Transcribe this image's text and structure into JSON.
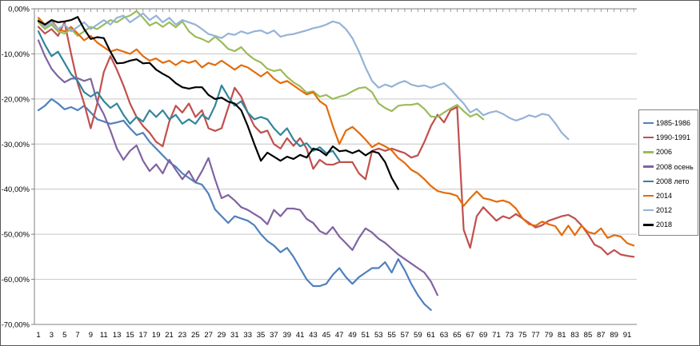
{
  "chart_data": {
    "type": "line",
    "x_axis": {
      "tick_labels": [
        "1",
        "3",
        "5",
        "7",
        "9",
        "11",
        "13",
        "15",
        "17",
        "19",
        "21",
        "23",
        "25",
        "27",
        "29",
        "31",
        "33",
        "35",
        "37",
        "39",
        "41",
        "43",
        "45",
        "47",
        "49",
        "51",
        "53",
        "55",
        "57",
        "59",
        "61",
        "63",
        "65",
        "67",
        "69",
        "71",
        "73",
        "75",
        "77",
        "79",
        "81",
        "83",
        "85",
        "87",
        "89",
        "91"
      ],
      "tick_step": 2,
      "max_index": 92
    },
    "y_axis": {
      "tick_labels": [
        "0,00%",
        "-10,00%",
        "-20,00%",
        "-30,00%",
        "-40,00%",
        "-50,00%",
        "-60,00%",
        "-70,00%"
      ],
      "tick_values": [
        0,
        -10,
        -20,
        -30,
        -40,
        -50,
        -60,
        -70
      ],
      "ylim": [
        -70,
        0
      ],
      "unit": "%"
    },
    "grid": "horizontal",
    "legend_position": "right",
    "series": [
      {
        "name": "1985-1986",
        "color": "#4F81BD",
        "start_index": 1,
        "values": [
          -22.5,
          -21.5,
          -20,
          -21,
          -22.3,
          -21.8,
          -22.5,
          -21.5,
          -23,
          -24.5,
          -25,
          -25.5,
          -25.2,
          -24.8,
          -26.5,
          -28,
          -27.5,
          -29.5,
          -31,
          -32.5,
          -34,
          -35,
          -36.5,
          -37.5,
          -38.5,
          -39,
          -41,
          -44.5,
          -46,
          -47.5,
          -46,
          -46.5,
          -47,
          -48,
          -50,
          -51.5,
          -52.5,
          -54,
          -53,
          -55,
          -57.5,
          -60,
          -61.5,
          -61.5,
          -61,
          -59,
          -57.5,
          -59.5,
          -61,
          -59.5,
          -58.5,
          -57.5,
          -57.5,
          -56.2,
          -58.5,
          -55.5,
          -58,
          -61,
          -63.5,
          -65.5,
          -66.8
        ]
      },
      {
        "name": "1990-1991",
        "color": "#C0504D",
        "start_index": 1,
        "values": [
          -4,
          -5.5,
          -4.5,
          -6,
          -3,
          -10,
          -16.5,
          -21,
          -26.5,
          -21,
          -14,
          -10.5,
          -13.5,
          -17,
          -21,
          -24,
          -26,
          -27.5,
          -29.5,
          -30.5,
          -25,
          -21.5,
          -23,
          -21,
          -24,
          -22.5,
          -26.5,
          -27.1,
          -26.5,
          -22,
          -17.5,
          -19.5,
          -23,
          -26,
          -27.5,
          -27,
          -30,
          -31,
          -28.7,
          -30.4,
          -28.7,
          -31,
          -35.5,
          -33.5,
          -34.5,
          -34.6,
          -34,
          -34,
          -34,
          -36.5,
          -37.8,
          -31.5,
          -31,
          -31.5,
          -31,
          -31.5,
          -32,
          -33,
          -32.5,
          -29.5,
          -26,
          -23.5,
          -25.2,
          -22.5,
          -21.8,
          -49,
          -53,
          -46,
          -44,
          -45.5,
          -47,
          -46,
          -46.5,
          -45.5,
          -46.5,
          -47.5,
          -48.5,
          -48,
          -47,
          -46.5,
          -46,
          -45.7,
          -46.5,
          -48,
          -50,
          -52.3,
          -53,
          -54.5,
          -53.5,
          -54.5,
          -54.8,
          -55
        ]
      },
      {
        "name": "2006",
        "color": "#9BBB59",
        "start_index": 1,
        "values": [
          -3,
          -4.5,
          -3.5,
          -5,
          -5.5,
          -4.5,
          -6,
          -5,
          -4,
          -4.5,
          -3.5,
          -2.5,
          -3,
          -2,
          -1.5,
          -0.5,
          -2,
          -3.7,
          -3,
          -4,
          -3,
          -4.1,
          -2.8,
          -5,
          -6.2,
          -6.7,
          -7.4,
          -6.2,
          -7.4,
          -8.9,
          -9.4,
          -8.5,
          -10.1,
          -11.2,
          -11.9,
          -13.3,
          -13.8,
          -13.5,
          -15.1,
          -16.3,
          -17.2,
          -18.6,
          -18.3,
          -19.5,
          -19.1,
          -20,
          -19.5,
          -19.1,
          -18.3,
          -17.6,
          -17.4,
          -18.5,
          -21,
          -22,
          -22.7,
          -21.5,
          -21.3,
          -21.3,
          -21,
          -22.2,
          -23.9,
          -24,
          -23,
          -22.1,
          -21.3,
          -22.7,
          -23.9,
          -23.3,
          -24.5
        ]
      },
      {
        "name": "2008 осень",
        "color": "#8064A2",
        "start_index": 1,
        "values": [
          -7,
          -10.5,
          -13.3,
          -15,
          -16.3,
          -15.5,
          -15.4,
          -16,
          -15.5,
          -20.7,
          -23.4,
          -27,
          -31,
          -33.5,
          -31.5,
          -30.3,
          -33.7,
          -36,
          -34.5,
          -36.5,
          -33.5,
          -35.7,
          -37.8,
          -36,
          -38.5,
          -36,
          -33.1,
          -37.8,
          -42,
          -41.3,
          -42.5,
          -44,
          -44.6,
          -45.5,
          -46.4,
          -47.8,
          -44.6,
          -46,
          -44.3,
          -44.3,
          -44.6,
          -46.6,
          -47.5,
          -49.3,
          -50,
          -48.4,
          -50.5,
          -52,
          -53.5,
          -50.8,
          -48.7,
          -49.6,
          -51,
          -51.9,
          -53.2,
          -54.5,
          -55.5,
          -56.5,
          -57.5,
          -58.5,
          -60.5,
          -63.5
        ]
      },
      {
        "name": "2008 лето",
        "color": "#31859C",
        "start_index": 1,
        "values": [
          -5,
          -8,
          -10.5,
          -9.5,
          -12,
          -14.5,
          -16,
          -18.5,
          -19.5,
          -18.5,
          -20.5,
          -22,
          -21,
          -23.5,
          -25.5,
          -24,
          -25,
          -22.5,
          -24,
          -22.5,
          -24.5,
          -23.5,
          -25.5,
          -24.5,
          -25.5,
          -23.5,
          -24.5,
          -21.5,
          -17,
          -19.5,
          -21.5,
          -20.5,
          -23,
          -24.5,
          -24,
          -24.5,
          -26.5,
          -28,
          -26.5,
          -29,
          -30.5,
          -29.8,
          -31.5,
          -30.7,
          -32,
          -31.5,
          -33.7
        ]
      },
      {
        "name": "2014",
        "color": "#E36C0A",
        "start_index": 1,
        "values": [
          -2,
          -3.5,
          -2.5,
          -4.5,
          -5,
          -4,
          -5.5,
          -7,
          -6,
          -7.5,
          -8.5,
          -9.5,
          -9,
          -9.5,
          -10,
          -9,
          -10.5,
          -11.5,
          -11,
          -12,
          -11.5,
          -12.5,
          -11.5,
          -12,
          -11.5,
          -13,
          -12,
          -12.5,
          -11.5,
          -12.5,
          -13.5,
          -12.5,
          -13,
          -14,
          -15,
          -14,
          -15.5,
          -16.5,
          -16,
          -17,
          -18,
          -19,
          -18.5,
          -20.5,
          -21.5,
          -26,
          -30,
          -27,
          -26.2,
          -27.5,
          -29,
          -30.7,
          -29.8,
          -30.5,
          -31.4,
          -33.1,
          -34.2,
          -35.7,
          -36.5,
          -37.8,
          -39.3,
          -40.4,
          -40.8,
          -41,
          -41.5,
          -43.7,
          -42,
          -40.5,
          -42,
          -42.3,
          -42.8,
          -42.5,
          -43,
          -44.3,
          -46.5,
          -47.8,
          -48.1,
          -47.2,
          -47.8,
          -48.2,
          -50.2,
          -48.1,
          -50.2,
          -48.1,
          -49.5,
          -49.9,
          -48.7,
          -50.8,
          -50.2,
          -50.5,
          -52,
          -52.5
        ]
      },
      {
        "name": "2012",
        "color": "#95B3D7",
        "start_index": 1,
        "values": [
          -2.5,
          -4,
          -3,
          -4.5,
          -3.5,
          -5,
          -4,
          -3,
          -4.5,
          -3.5,
          -2.5,
          -3.5,
          -2,
          -1.5,
          -3,
          -2,
          -1,
          -2.5,
          -1.5,
          -3,
          -2,
          -3.5,
          -2.5,
          -3,
          -3.5,
          -4.5,
          -5.6,
          -6,
          -6.5,
          -5.5,
          -5.8,
          -5,
          -5.5,
          -5,
          -4.8,
          -5.5,
          -4.8,
          -6.2,
          -5.8,
          -5.6,
          -5.2,
          -4.8,
          -4.3,
          -4,
          -3.5,
          -2.8,
          -3.2,
          -4.5,
          -6.5,
          -9.5,
          -13,
          -16,
          -17.5,
          -16.8,
          -17.3,
          -16.5,
          -16,
          -16.8,
          -17.2,
          -17,
          -17.5,
          -17,
          -16.5,
          -17.8,
          -19.5,
          -21,
          -23,
          -22.2,
          -23.6,
          -23,
          -22.7,
          -23.3,
          -24.2,
          -24.8,
          -24.3,
          -23.6,
          -24,
          -23.3,
          -23.6,
          -25.4,
          -27.5,
          -28.9
        ]
      },
      {
        "name": "2018",
        "color": "#000000",
        "start_index": 1,
        "values": [
          -2.7,
          -3.5,
          -2.5,
          -3,
          -2.8,
          -2.5,
          -1.8,
          -4.5,
          -6.7,
          -6.3,
          -6.5,
          -9.5,
          -12.1,
          -12,
          -11.5,
          -11.2,
          -12.1,
          -12,
          -13.5,
          -14.4,
          -15.2,
          -16.5,
          -17.4,
          -17.7,
          -17.4,
          -17.4,
          -19.1,
          -20,
          -19.7,
          -20.6,
          -21,
          -22.5,
          -26,
          -30,
          -33.7,
          -31.9,
          -32.8,
          -33.7,
          -32.8,
          -33.3,
          -32.4,
          -33,
          -31,
          -31.4,
          -32.5,
          -30.5,
          -31.6,
          -31.4,
          -32,
          -31.4,
          -32.5,
          -31.6,
          -32,
          -34,
          -37.5,
          -40
        ]
      }
    ]
  },
  "style": {
    "gridline_color": "#C6C6C6",
    "axis_color": "#808080",
    "plot_background": "#FFFFFF",
    "outer_border_color": "#595959",
    "legend_border_color": "#848484"
  }
}
